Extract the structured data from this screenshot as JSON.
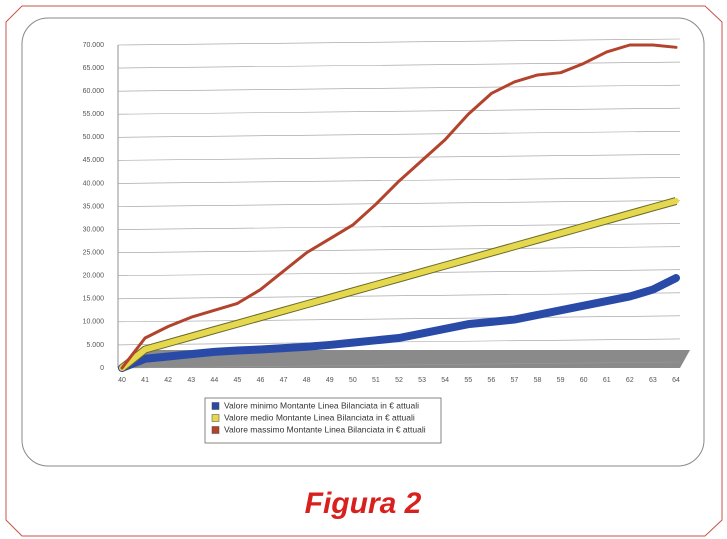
{
  "chart_data": {
    "type": "line",
    "caption": "Figura 2",
    "categories": [
      "40",
      "41",
      "42",
      "43",
      "44",
      "45",
      "46",
      "47",
      "48",
      "49",
      "50",
      "51",
      "52",
      "53",
      "54",
      "55",
      "56",
      "57",
      "58",
      "59",
      "60",
      "61",
      "62",
      "63",
      "64"
    ],
    "series": [
      {
        "name": "Valore minimo Montante Linea Bilanciata in € attuali",
        "color": "#2a4aa8",
        "values": [
          0,
          2000,
          2500,
          3000,
          3500,
          3800,
          4000,
          4300,
          4600,
          5000,
          5500,
          6000,
          6500,
          7500,
          8500,
          9500,
          10000,
          10500,
          11500,
          12500,
          13500,
          14500,
          15500,
          17000,
          19500
        ]
      },
      {
        "name": "Valore medio Montante Linea Bilanciata in € attuali",
        "color": "#e6d84e",
        "values": [
          0,
          4000,
          5400,
          6800,
          8200,
          9600,
          11000,
          12400,
          13800,
          15200,
          16600,
          18000,
          19400,
          20800,
          22200,
          23600,
          25000,
          26400,
          27800,
          29200,
          30600,
          32000,
          33400,
          34800,
          36200
        ]
      },
      {
        "name": "Valore massimo Montante Linea Bilanciata in € attuali",
        "color": "#b3432c",
        "values": [
          0,
          6500,
          9000,
          11000,
          12500,
          14000,
          17000,
          21000,
          25000,
          28000,
          31000,
          35500,
          40500,
          45000,
          49500,
          55000,
          59500,
          62000,
          63500,
          64000,
          66000,
          68500,
          70000,
          70000,
          69500
        ]
      }
    ],
    "ylim": [
      0,
      70000
    ],
    "yticks": [
      0,
      {
        "value": 5000,
        "label": "5.000"
      },
      {
        "value": 10000,
        "label": "10.000"
      },
      {
        "value": 15000,
        "label": "15.000"
      },
      {
        "value": 20000,
        "label": "20.000"
      },
      {
        "value": 25000,
        "label": "25.000"
      },
      {
        "value": 30000,
        "label": "30.000"
      },
      {
        "value": 35000,
        "label": "35.000"
      },
      {
        "value": 40000,
        "label": "40.000"
      },
      {
        "value": 45000,
        "label": "45.000"
      },
      {
        "value": 50000,
        "label": "50.000"
      },
      {
        "value": 55000,
        "label": "55.000"
      },
      {
        "value": 60000,
        "label": "60.000"
      },
      {
        "value": 65000,
        "label": "65.000"
      },
      {
        "value": 70000,
        "label": "70.000"
      }
    ],
    "grid": true
  }
}
